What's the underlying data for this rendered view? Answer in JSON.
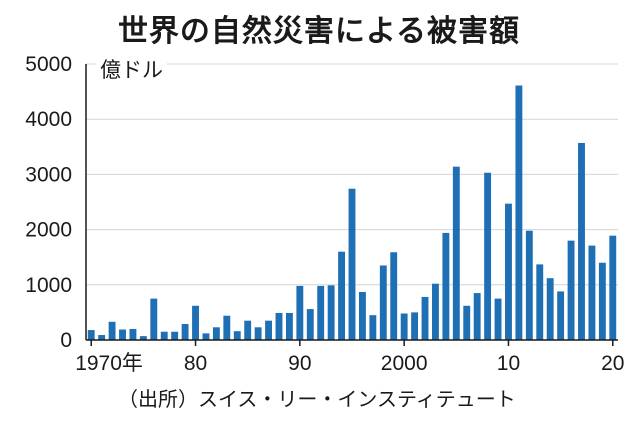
{
  "chart_data": {
    "type": "bar",
    "title": "世界の自然災害による被害額",
    "ylabel": "億ドル",
    "source": "（出所）スイス・リー・インスティテュート",
    "ylim": [
      0,
      5000
    ],
    "yticks": [
      "0",
      "1000",
      "2000",
      "3000",
      "4000",
      "5000"
    ],
    "xticks": [
      {
        "year": 1970,
        "label": "1970年"
      },
      {
        "year": 1980,
        "label": "80"
      },
      {
        "year": 1990,
        "label": "90"
      },
      {
        "year": 2000,
        "label": "2000"
      },
      {
        "year": 2010,
        "label": "10"
      },
      {
        "year": 2020,
        "label": "20"
      }
    ],
    "bar_color": "#1f6fb5",
    "x": [
      1970,
      1971,
      1972,
      1973,
      1974,
      1975,
      1976,
      1977,
      1978,
      1979,
      1980,
      1981,
      1982,
      1983,
      1984,
      1985,
      1986,
      1987,
      1988,
      1989,
      1990,
      1991,
      1992,
      1993,
      1994,
      1995,
      1996,
      1997,
      1998,
      1999,
      2000,
      2001,
      2002,
      2003,
      2004,
      2005,
      2006,
      2007,
      2008,
      2009,
      2010,
      2011,
      2012,
      2013,
      2014,
      2015,
      2016,
      2017,
      2018,
      2019,
      2020
    ],
    "values": [
      180,
      90,
      330,
      190,
      200,
      70,
      750,
      150,
      150,
      290,
      620,
      120,
      230,
      440,
      160,
      350,
      230,
      350,
      490,
      490,
      980,
      560,
      980,
      990,
      1600,
      2740,
      870,
      450,
      1350,
      1590,
      480,
      500,
      780,
      1020,
      1940,
      3140,
      620,
      850,
      3030,
      750,
      2470,
      4610,
      1980,
      1370,
      1120,
      880,
      1800,
      3570,
      1710,
      1400,
      1890
    ]
  }
}
